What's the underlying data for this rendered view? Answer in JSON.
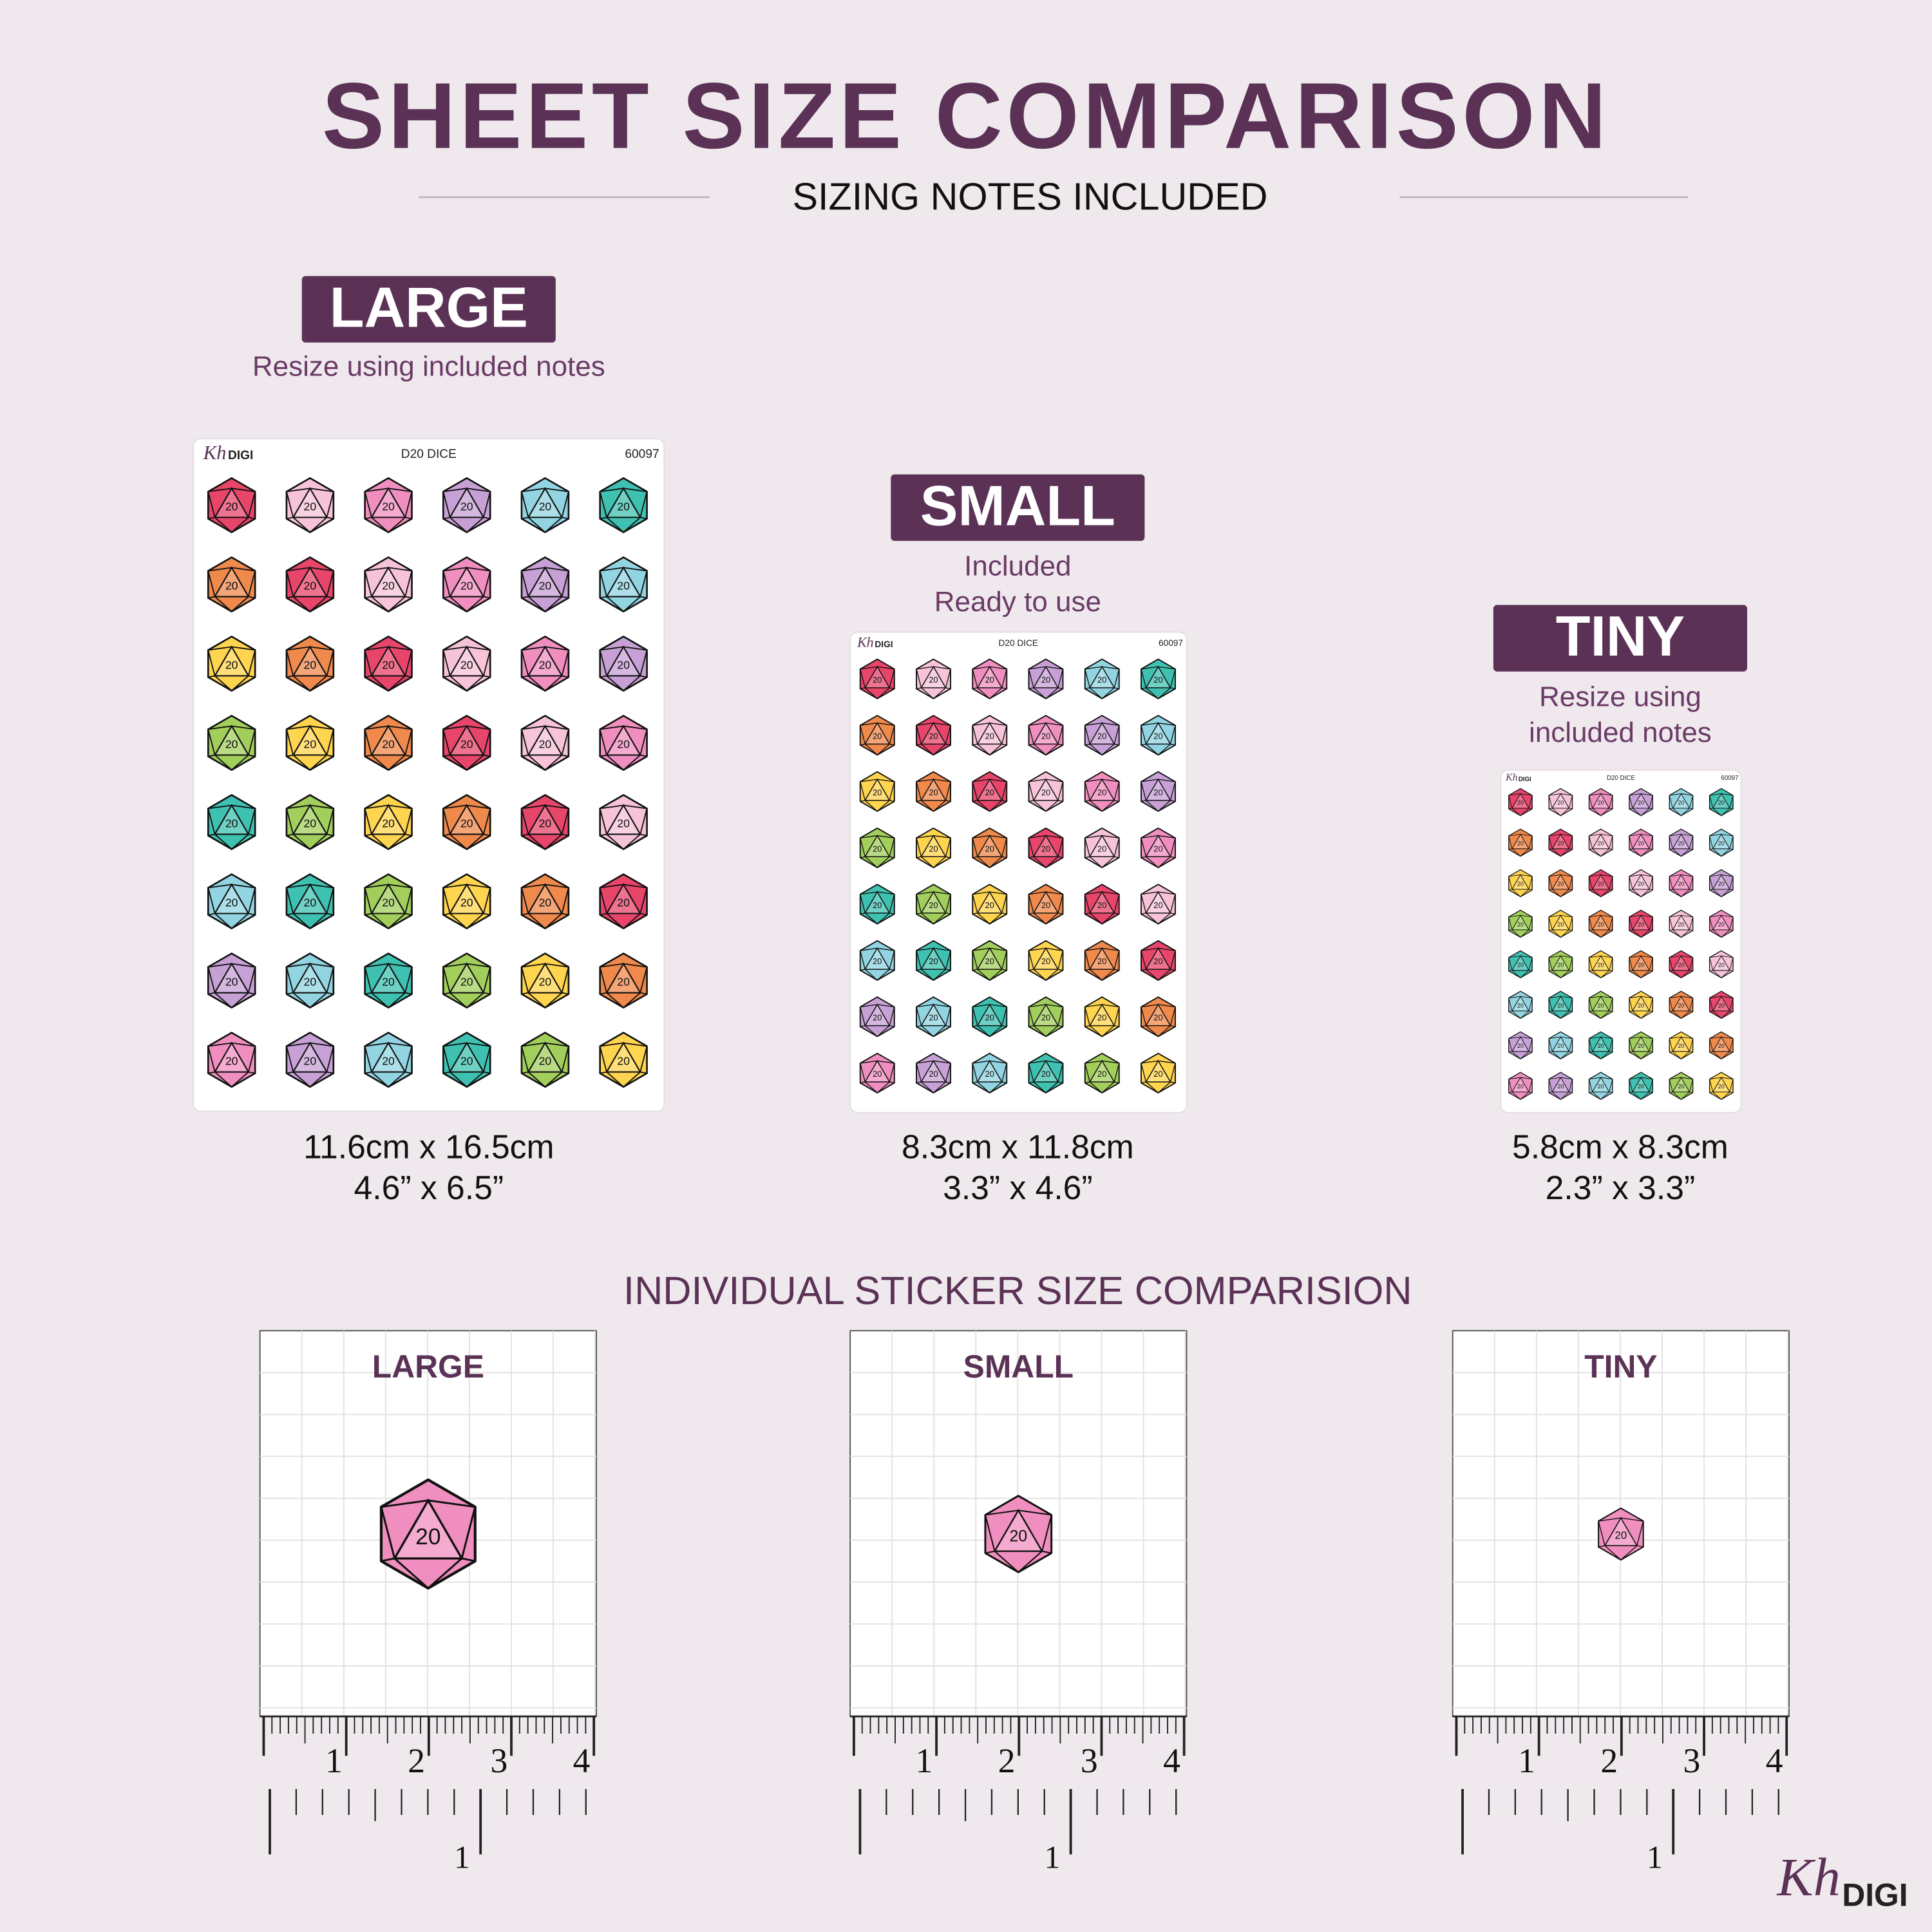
{
  "header": {
    "title": "SHEET SIZE COMPARISON",
    "subtitle": "SIZING NOTES INCLUDED"
  },
  "sticker_sheet": {
    "brand_script": "Kh",
    "brand": "DIGI",
    "title": "D20 DICE",
    "code": "60097"
  },
  "die_label": "20",
  "sheets": [
    {
      "label": "LARGE",
      "notes": [
        "Resize using included notes"
      ],
      "size_cm": "11.6cm x 16.5cm",
      "size_in": "4.6” x 6.5”"
    },
    {
      "label": "SMALL",
      "notes": [
        "Included",
        "Ready to use"
      ],
      "size_cm": "8.3cm x 11.8cm",
      "size_in": "3.3” x 4.6”"
    },
    {
      "label": "TINY",
      "notes": [
        "Resize using",
        "included notes"
      ],
      "size_cm": "5.8cm x 8.3cm",
      "size_in": "2.3” x 3.3”"
    }
  ],
  "individual": {
    "title": "INDIVIDUAL STICKER SIZE COMPARISION",
    "labels": [
      "LARGE",
      "SMALL",
      "TINY"
    ]
  },
  "ruler": {
    "cm_labels": [
      "1",
      "2",
      "3",
      "4"
    ],
    "inch_label": "1"
  },
  "footer": {
    "brand_script": "Kh",
    "brand": "DIGI"
  }
}
